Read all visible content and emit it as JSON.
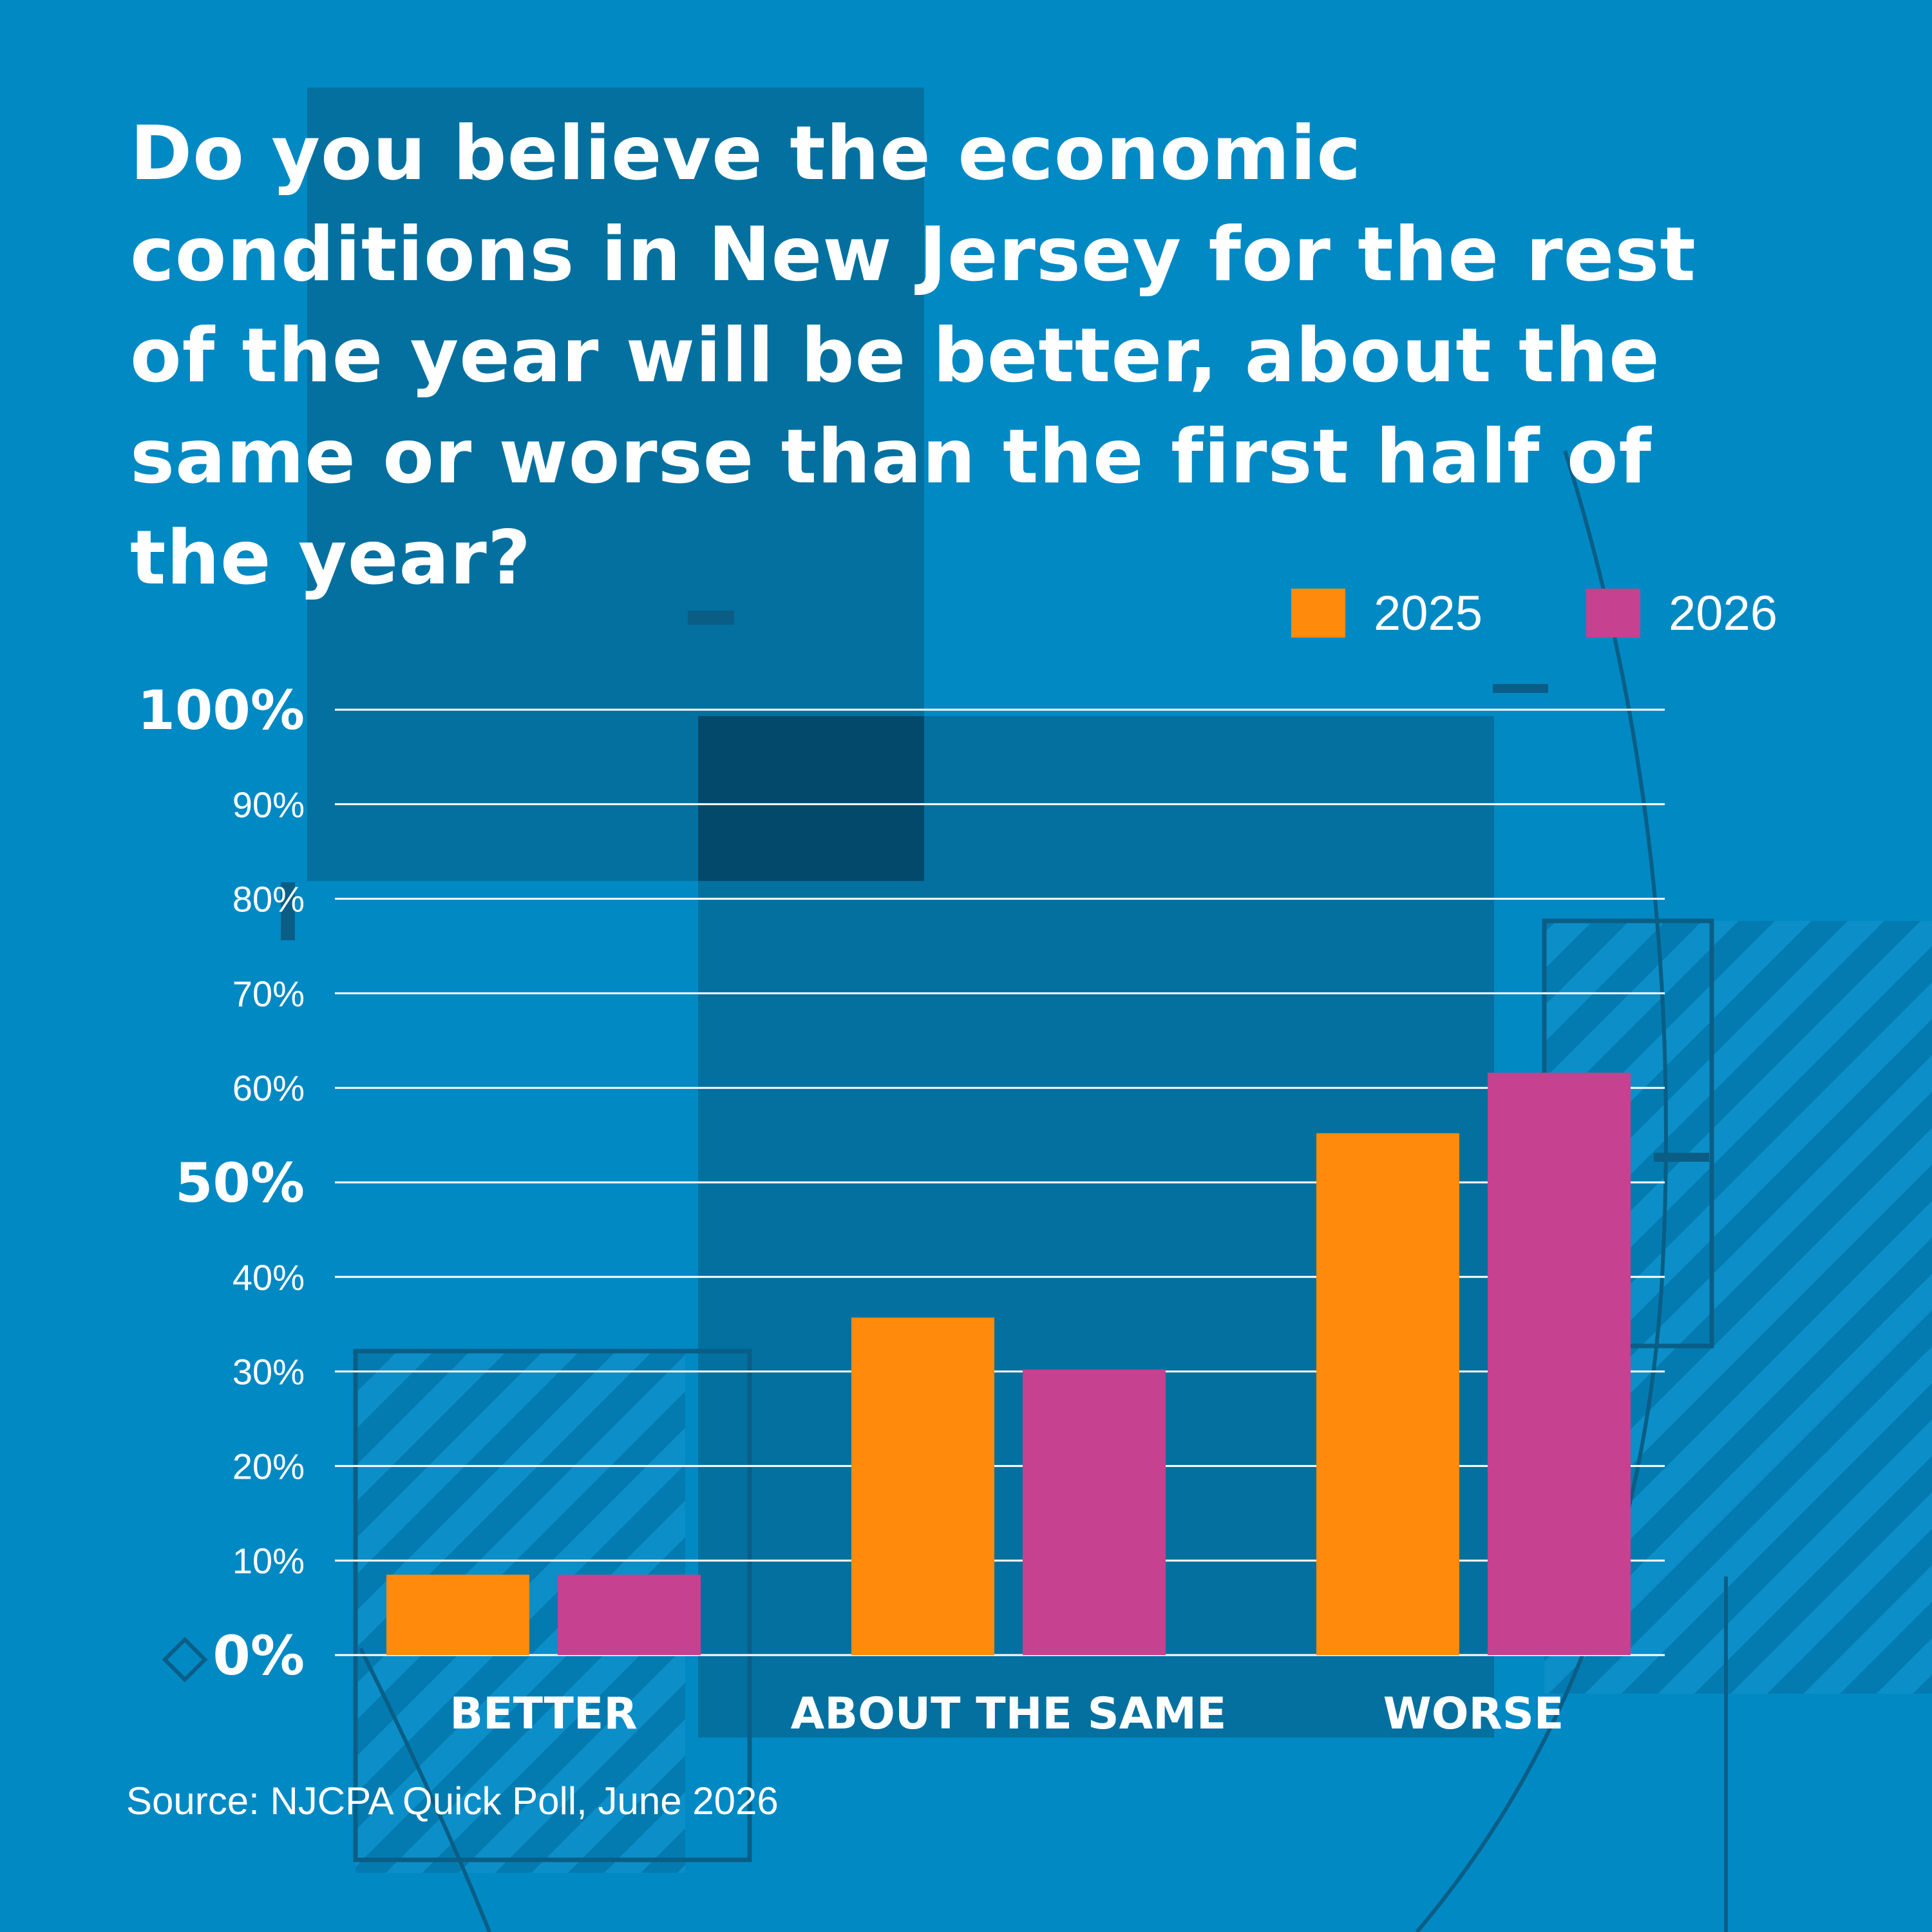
{
  "colors": {
    "background": "#0189C4",
    "panel": "#046C99",
    "panel_dark": "#03496B",
    "series_2025": "#FF8A0B",
    "series_2026": "#C6418F",
    "grid": "#FFFFFF"
  },
  "chart_data": {
    "type": "bar",
    "title": "Do you believe the economic conditions in New Jersey for the rest of the year will be better, about the same or worse than the first half of the year?",
    "categories": [
      "BETTER",
      "ABOUT THE SAME",
      "WORSE"
    ],
    "series": [
      {
        "name": "2025",
        "color": "#FF8A0B",
        "values": [
          8.5,
          35.7,
          55.2
        ]
      },
      {
        "name": "2026",
        "color": "#C6418F",
        "values": [
          8.5,
          30.2,
          61.6
        ]
      }
    ],
    "yticks": [
      "0%",
      "10%",
      "20%",
      "30%",
      "40%",
      "50%",
      "60%",
      "70%",
      "80%",
      "90%",
      "100%"
    ],
    "major_ticks": [
      "0%",
      "50%",
      "100%"
    ],
    "ylim": [
      0,
      100
    ],
    "grid": true,
    "legend_position": "top-right"
  },
  "source": "Source: NJCPA Quick Poll, June 2026"
}
